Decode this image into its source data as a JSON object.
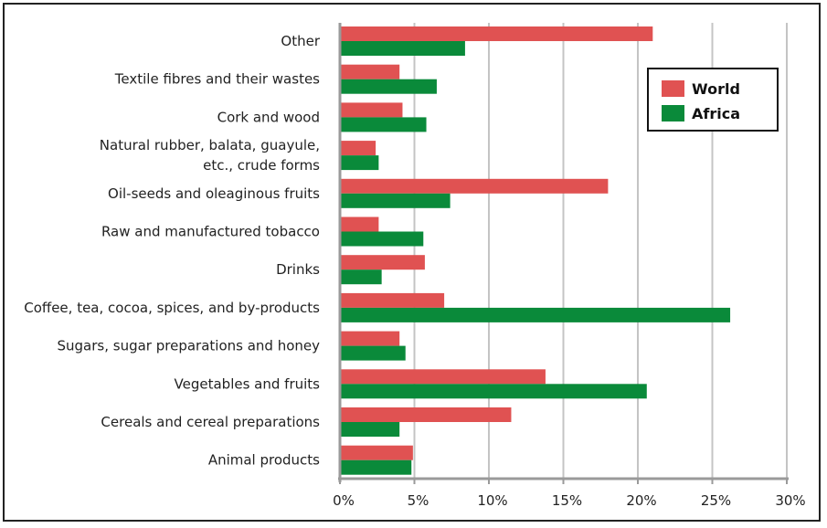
{
  "chart_data": {
    "type": "bar",
    "orientation": "horizontal",
    "categories": [
      [
        "Other"
      ],
      [
        "Textile fibres and their wastes"
      ],
      [
        "Cork and wood"
      ],
      [
        "Natural rubber, balata, guayule,",
        "etc., crude forms"
      ],
      [
        "Oil-seeds and oleaginous fruits"
      ],
      [
        "Raw and manufactured tobacco"
      ],
      [
        "Drinks"
      ],
      [
        "Coffee, tea, cocoa, spices, and by-products"
      ],
      [
        "Sugars, sugar preparations and honey"
      ],
      [
        "Vegetables and fruits"
      ],
      [
        "Cereals and cereal preparations"
      ],
      [
        "Animal products"
      ]
    ],
    "series": [
      {
        "name": "World",
        "color": "#e05252",
        "values": [
          21.0,
          4.0,
          4.2,
          2.4,
          18.0,
          2.6,
          5.7,
          7.0,
          4.0,
          13.8,
          11.5,
          4.9
        ]
      },
      {
        "name": "Africa",
        "color": "#0a8a3a",
        "values": [
          8.4,
          6.5,
          5.8,
          2.6,
          7.4,
          5.6,
          2.8,
          26.2,
          4.4,
          20.6,
          4.0,
          4.8
        ]
      }
    ],
    "xlim": [
      0,
      30
    ],
    "xticks": [
      "0%",
      "5%",
      "10%",
      "15%",
      "20%",
      "25%",
      "30%"
    ],
    "xtick_values": [
      0,
      5,
      10,
      15,
      20,
      25,
      30
    ],
    "grid": true,
    "legend_position": "top-right"
  }
}
